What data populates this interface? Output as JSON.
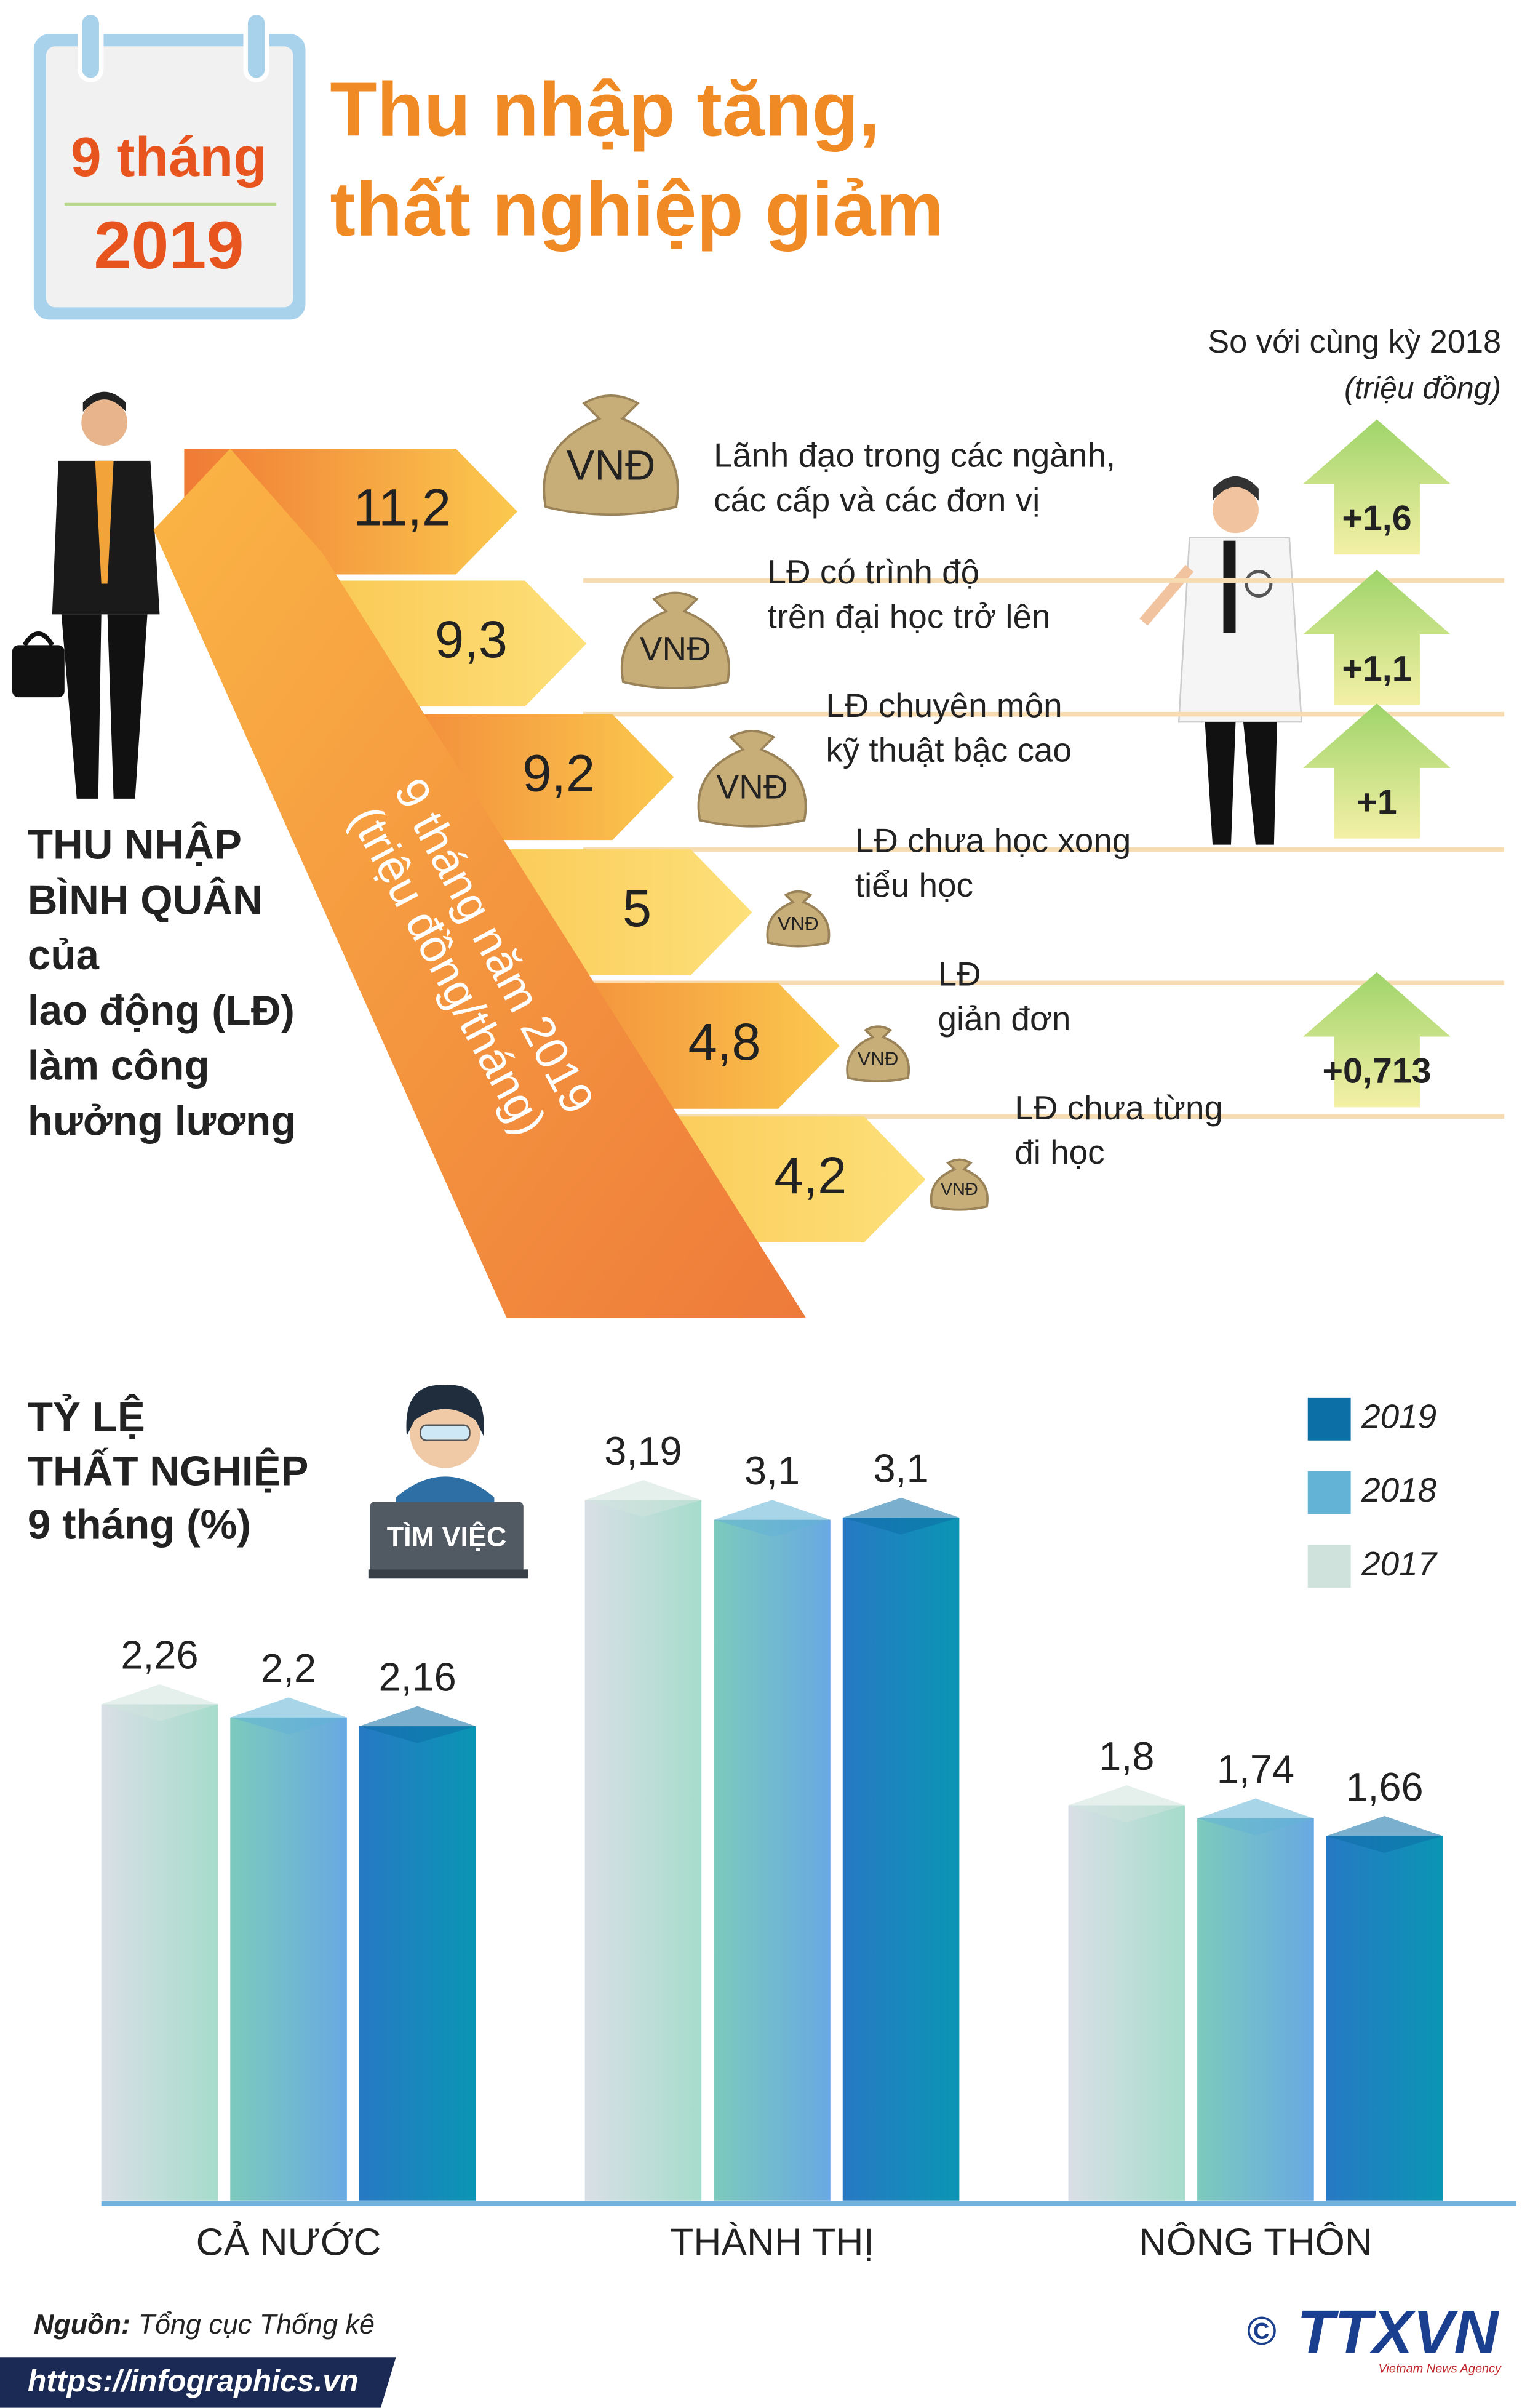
{
  "header": {
    "badge_top": "9 tháng",
    "badge_bottom": "2019",
    "title_lines": [
      "Thu nhập tăng,",
      "thất nghiệp giảm"
    ]
  },
  "income": {
    "label_lines": [
      "THU NHẬP",
      "BÌNH QUÂN",
      "của",
      "lao động (LĐ)",
      "làm công",
      "hưởng lương"
    ],
    "ribbon_lines": [
      "9 tháng năm 2019",
      "(triệu đồng/tháng)"
    ],
    "comparison_title": "So với cùng kỳ 2018",
    "comparison_unit": "(triệu đồng)",
    "bag_label": "VNĐ",
    "rows": [
      {
        "value": "11,2",
        "desc_lines": [
          "Lãnh đạo trong các ngành,",
          "các cấp và các đơn vị"
        ],
        "change": "+1,6"
      },
      {
        "value": "9,3",
        "desc_lines": [
          "LĐ có trình độ",
          "trên đại học trở lên"
        ],
        "change": "+1,1"
      },
      {
        "value": "9,2",
        "desc_lines": [
          "LĐ chuyên môn",
          "kỹ thuật bậc cao"
        ],
        "change": "+1"
      },
      {
        "value": "5",
        "desc_lines": [
          "LĐ chưa học xong",
          "tiểu học"
        ]
      },
      {
        "value": "4,8",
        "desc_lines": [
          "LĐ",
          "giản đơn"
        ],
        "change": "+0,713"
      },
      {
        "value": "4,2",
        "desc_lines": [
          "LĐ chưa từng",
          "đi học"
        ]
      }
    ]
  },
  "chart_data": {
    "type": "bar",
    "title_lines": [
      "TỶ LỆ",
      "THẤT NGHIỆP",
      "9 tháng (%)"
    ],
    "badge": "TÌM VIỆC",
    "categories": [
      "CẢ NƯỚC",
      "THÀNH THỊ",
      "NÔNG THÔN"
    ],
    "series": [
      {
        "name": "2017",
        "color": "#cfe3dc",
        "values": [
          2.26,
          3.19,
          1.8
        ],
        "value_labels": [
          "2,26",
          "3,19",
          "1,8"
        ]
      },
      {
        "name": "2018",
        "color": "#62b3d6",
        "values": [
          2.2,
          3.1,
          1.74
        ],
        "value_labels": [
          "2,2",
          "3,1",
          "1,74"
        ]
      },
      {
        "name": "2019",
        "color": "#0c6fa6",
        "values": [
          2.16,
          3.11,
          1.66
        ],
        "value_labels": [
          "2,16",
          "3,1",
          "1,66"
        ]
      }
    ]
  },
  "footer": {
    "source_label": "Nguồn:",
    "source": "Tổng cục Thống kê",
    "url": "https://infographics.vn",
    "copyright": "©",
    "logo": "TTXVN",
    "logo_sub": "Vietnam News Agency"
  }
}
